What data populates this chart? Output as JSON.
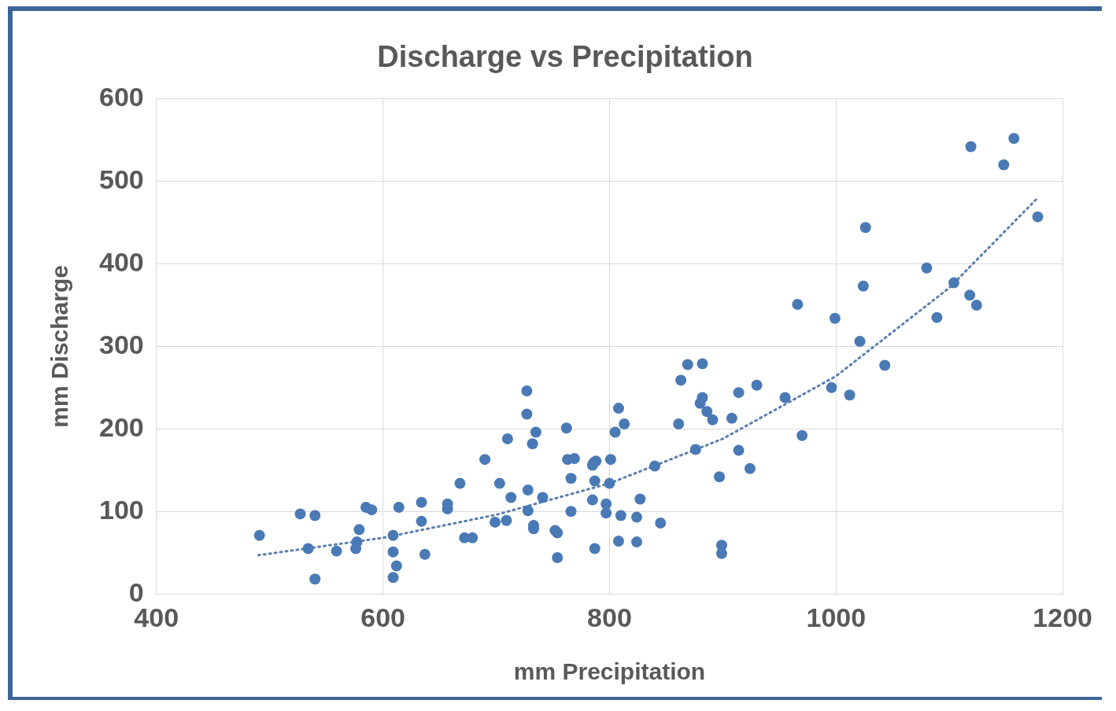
{
  "chart_data": {
    "type": "scatter",
    "title": "Discharge vs Precipitation",
    "xlabel": "mm Precipitation",
    "ylabel": "mm Discharge",
    "xlim": [
      400,
      1200
    ],
    "xticks": [
      400,
      600,
      800,
      1000,
      1200
    ],
    "ylim": [
      0,
      600
    ],
    "yticks": [
      0,
      100,
      200,
      300,
      400,
      500,
      600
    ],
    "grid": true,
    "legend": false,
    "marker": "circle",
    "series": [
      {
        "color": "#4a7ab5",
        "x": [
          491,
          527,
          540,
          534,
          540,
          559,
          579,
          576,
          577,
          585,
          590,
          609,
          609,
          612,
          609,
          614,
          634,
          634,
          637,
          657,
          657,
          668,
          672,
          679,
          690,
          699,
          703,
          709,
          713,
          710,
          727,
          727,
          728,
          728,
          732,
          735,
          733,
          733,
          741,
          752,
          754,
          754,
          762,
          763,
          769,
          766,
          766,
          785,
          786,
          788,
          785,
          787,
          787,
          797,
          797,
          801,
          800,
          805,
          808,
          813,
          808,
          810,
          824,
          824,
          827,
          840,
          845,
          861,
          863,
          869,
          882,
          876,
          882,
          880,
          886,
          891,
          897,
          899,
          899,
          908,
          914,
          914,
          924,
          930,
          955,
          966,
          970,
          996,
          999,
          1012,
          1021,
          1024,
          1026,
          1043,
          1080,
          1089,
          1104,
          1118,
          1124,
          1119,
          1148,
          1157,
          1178
        ],
        "values": [
          71,
          97,
          95,
          55,
          18,
          52,
          78,
          55,
          63,
          105,
          102,
          71,
          51,
          34,
          20,
          105,
          111,
          88,
          48,
          109,
          103,
          134,
          68,
          68,
          163,
          87,
          134,
          89,
          117,
          188,
          218,
          246,
          126,
          101,
          182,
          196,
          83,
          79,
          117,
          77,
          74,
          44,
          201,
          163,
          164,
          140,
          100,
          156,
          159,
          161,
          114,
          137,
          55,
          109,
          98,
          163,
          134,
          196,
          225,
          206,
          64,
          95,
          63,
          93,
          115,
          155,
          86,
          206,
          259,
          278,
          279,
          175,
          238,
          231,
          221,
          211,
          142,
          59,
          49,
          213,
          244,
          174,
          152,
          253,
          238,
          351,
          192,
          250,
          334,
          241,
          306,
          373,
          444,
          277,
          395,
          335,
          377,
          362,
          350,
          542,
          520,
          552,
          457
        ]
      },
      {
        "type": "line",
        "color": "#5b7fae",
        "marker": "none",
        "line_style": "dotted",
        "x": [
          490,
          600,
          700,
          800,
          900,
          1000,
          1100,
          1178
        ],
        "values": [
          47,
          68,
          96,
          134,
          188,
          264,
          371,
          480
        ]
      }
    ]
  }
}
